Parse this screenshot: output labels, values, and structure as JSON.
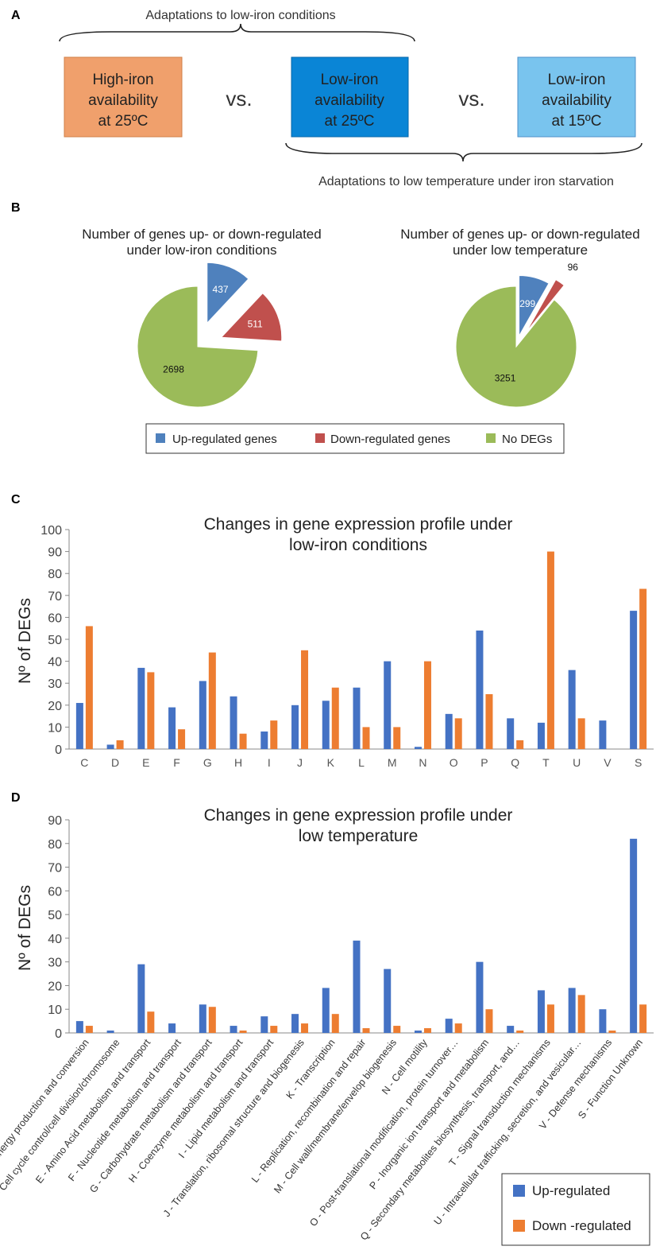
{
  "panel_a": {
    "letter": "A",
    "top_label": "Adaptations to low-iron conditions",
    "bottom_label": "Adaptations to low temperature under iron starvation",
    "vs": "vs.",
    "boxes": [
      {
        "lines": [
          "High-iron",
          "availability",
          "at 25ºC"
        ],
        "color": "#F0A06C"
      },
      {
        "lines": [
          "Low-iron",
          "availability",
          "at 25ºC"
        ],
        "color": "#0A85D6"
      },
      {
        "lines": [
          "Low-iron",
          "availability",
          "at 15ºC"
        ],
        "color": "#79C4EE"
      }
    ]
  },
  "panel_b": {
    "letter": "B",
    "legend": [
      {
        "label": "Up-regulated genes",
        "color": "#4F81BD"
      },
      {
        "label": "Down-regulated genes",
        "color": "#C0504D"
      },
      {
        "label": "No DEGs",
        "color": "#9BBB59"
      }
    ]
  },
  "panel_c": {
    "letter": "C"
  },
  "panel_d": {
    "letter": "D",
    "legend": [
      {
        "label": "Up-regulated",
        "color": "#4472C4"
      },
      {
        "label": "Down -regulated",
        "color": "#ED7D31"
      }
    ]
  },
  "colors": {
    "up": "#4472C4",
    "down": "#ED7D31",
    "axis": "#888888"
  },
  "chart_data": [
    {
      "type": "pie",
      "title": "Number of genes up- or down-regulated under low-iron conditions",
      "title_lines": [
        "Number of genes up- or down-regulated",
        "under low-iron conditions"
      ],
      "labels": [
        "Up-regulated genes",
        "Down-regulated genes",
        "No DEGs"
      ],
      "values": [
        437,
        511,
        2698
      ],
      "colors": [
        "#4F81BD",
        "#C0504D",
        "#9BBB59"
      ]
    },
    {
      "type": "pie",
      "title": "Number of genes up- or down-regulated under low temperature",
      "title_lines": [
        "Number of genes up- or down-regulated",
        "under low temperature"
      ],
      "labels": [
        "Up-regulated genes",
        "Down-regulated genes",
        "No DEGs"
      ],
      "values": [
        299,
        96,
        3251
      ],
      "colors": [
        "#4F81BD",
        "#C0504D",
        "#9BBB59"
      ]
    },
    {
      "type": "bar",
      "title": "Changes in gene expression profile under low-iron conditions",
      "title_lines": [
        "Changes in gene expression profile under",
        "low-iron conditions"
      ],
      "ylabel": "Nº of DEGs",
      "ylim": [
        0,
        100
      ],
      "yticks": [
        0,
        10,
        20,
        30,
        40,
        50,
        60,
        70,
        80,
        90,
        100
      ],
      "categories": [
        "C",
        "D",
        "E",
        "F",
        "G",
        "H",
        "I",
        "J",
        "K",
        "L",
        "M",
        "N",
        "O",
        "P",
        "Q",
        "T",
        "U",
        "V",
        "S"
      ],
      "series": [
        {
          "name": "Up-regulated",
          "values": [
            21,
            2,
            37,
            19,
            31,
            24,
            8,
            20,
            22,
            28,
            40,
            1,
            16,
            54,
            14,
            12,
            36,
            13,
            63
          ]
        },
        {
          "name": "Down-regulated",
          "values": [
            56,
            4,
            35,
            9,
            44,
            7,
            13,
            45,
            28,
            10,
            10,
            40,
            14,
            25,
            4,
            90,
            14,
            0,
            73
          ]
        }
      ]
    },
    {
      "type": "bar",
      "title": "Changes in gene expression profile under low temperature",
      "title_lines": [
        "Changes in gene expression profile under",
        "low temperature"
      ],
      "ylabel": "Nº of DEGs",
      "ylim": [
        0,
        90
      ],
      "yticks": [
        0,
        10,
        20,
        30,
        40,
        50,
        60,
        70,
        80,
        90
      ],
      "legend_position": "bottom-right",
      "categories": [
        "C - Energy production and conversion",
        "D - Cell cycle control/cell division/chromosome",
        "E - Amino Acid metabolism and transport",
        "F - Nucleotide metabolism and transport",
        "G - Carbohydrate metabolism and transport",
        "H - Coenzyme metabolism and transport",
        "I - Lipid metabolism and transport",
        "J - Translation, ribosomal structure and biogenesis",
        "K - Transcription",
        "L - Replication, recombination and repair",
        "M - Cell wall/membrane/envelop biogenesis",
        "N - Cell motility",
        "O - Post-translational modification, protein turnover…",
        "P - Inorganic ion transport and metabolism",
        "Q - Secondary metabolites biosynthesis, transport, and…",
        "T - Signal transduction mechanisms",
        "U - Intracellular trafficking, secretion, and vesicular…",
        "V - Defense mechanisms",
        "S - Function Unknown"
      ],
      "series": [
        {
          "name": "Up-regulated",
          "values": [
            5,
            1,
            29,
            4,
            12,
            3,
            7,
            8,
            19,
            39,
            27,
            1,
            6,
            30,
            3,
            18,
            19,
            10,
            82
          ]
        },
        {
          "name": "Down -regulated",
          "values": [
            3,
            0,
            9,
            0,
            11,
            1,
            3,
            4,
            8,
            2,
            3,
            2,
            4,
            10,
            1,
            12,
            16,
            1,
            12
          ]
        }
      ]
    }
  ]
}
